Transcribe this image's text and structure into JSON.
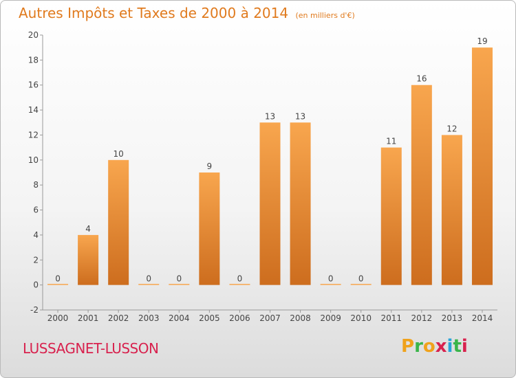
{
  "title": "Autres Impôts et Taxes de 2000 à 2014",
  "subtitle": "(en milliers d'€)",
  "commune": "LUSSAGNET-LUSSON",
  "logo": {
    "text": "Proxiti",
    "letters": [
      "P",
      "r",
      "o",
      "x",
      "i",
      "t",
      "i"
    ],
    "colors": [
      "#f0a21b",
      "#3ab54a",
      "#f0a21b",
      "#d8224e",
      "#2aa4d8",
      "#3ab54a",
      "#d8224e"
    ]
  },
  "colors": {
    "title": "#e07a1d",
    "commune": "#d8224e",
    "bar_top": "#f8a64e",
    "bar_bottom": "#cd6d1e"
  },
  "chart_data": {
    "type": "bar",
    "categories": [
      "2000",
      "2001",
      "2002",
      "2003",
      "2004",
      "2005",
      "2006",
      "2007",
      "2008",
      "2009",
      "2010",
      "2011",
      "2012",
      "2013",
      "2014"
    ],
    "values": [
      0,
      4,
      10,
      0,
      0,
      9,
      0,
      13,
      13,
      0,
      0,
      11,
      16,
      12,
      19
    ],
    "ylim": [
      -2,
      20
    ],
    "yticks": [
      -2,
      0,
      2,
      4,
      6,
      8,
      10,
      12,
      14,
      16,
      18,
      20
    ],
    "grid": false,
    "legend": "none"
  }
}
